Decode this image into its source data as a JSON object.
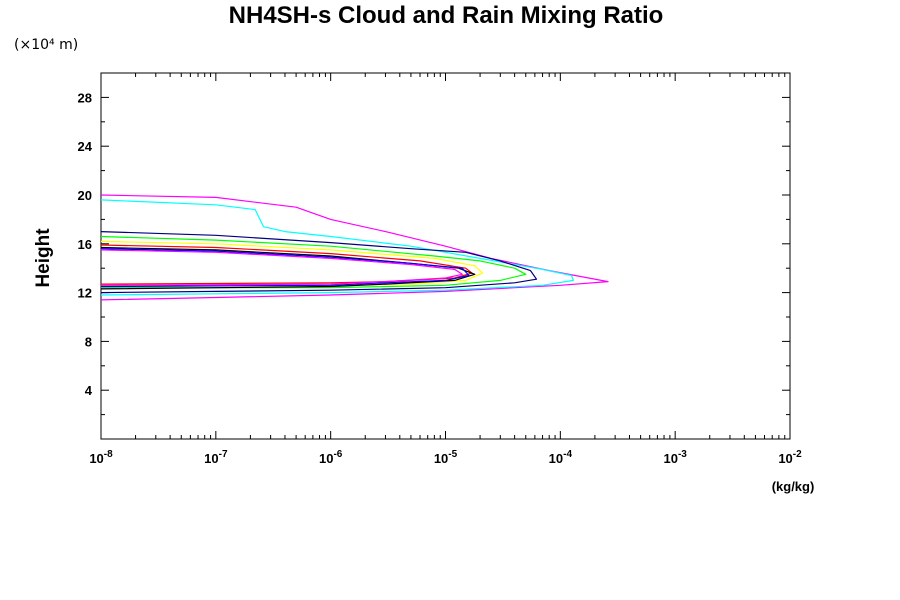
{
  "chart_data": {
    "type": "line",
    "title": "NH4SH-s Cloud and Rain Mixing Ratio",
    "ylabel": "Height",
    "y_unit_note": "(×10⁴ m)",
    "xlabel": "(kg/kg)",
    "x_scale": "log",
    "xlim": [
      1e-08,
      0.01
    ],
    "ylim": [
      0,
      30
    ],
    "x_tick_labels": [
      {
        "value": 1e-08,
        "base": "10",
        "exp": "-8"
      },
      {
        "value": 1e-07,
        "base": "10",
        "exp": "-7"
      },
      {
        "value": 1e-06,
        "base": "10",
        "exp": "-6"
      },
      {
        "value": 1e-05,
        "base": "10",
        "exp": "-5"
      },
      {
        "value": 0.0001,
        "base": "10",
        "exp": "-4"
      },
      {
        "value": 0.001,
        "base": "10",
        "exp": "-3"
      },
      {
        "value": 0.01,
        "base": "10",
        "exp": "-2"
      }
    ],
    "y_ticks": [
      4,
      8,
      12,
      16,
      20,
      24,
      28
    ],
    "series": [
      {
        "color": "#ff00ff",
        "points": [
          [
            1e-08,
            20.0
          ],
          [
            1e-07,
            19.8
          ],
          [
            5e-07,
            19.0
          ],
          [
            1e-06,
            18.0
          ],
          [
            3e-06,
            17.0
          ],
          [
            1e-05,
            15.8
          ],
          [
            2.5e-05,
            14.8
          ],
          [
            8e-05,
            13.8
          ],
          [
            0.00026,
            12.9
          ],
          [
            0.0001,
            12.6
          ],
          [
            1e-05,
            12.1
          ],
          [
            1e-06,
            11.8
          ],
          [
            1e-07,
            11.6
          ],
          [
            1e-08,
            11.4
          ]
        ]
      },
      {
        "color": "#00ffff",
        "points": [
          [
            1e-08,
            19.6
          ],
          [
            1e-07,
            19.2
          ],
          [
            2.2e-07,
            18.8
          ],
          [
            2.6e-07,
            17.4
          ],
          [
            4e-07,
            17.0
          ],
          [
            1e-06,
            16.6
          ],
          [
            5e-06,
            15.8
          ],
          [
            2e-05,
            14.8
          ],
          [
            7e-05,
            13.9
          ],
          [
            0.000125,
            13.4
          ],
          [
            0.00013,
            13.0
          ],
          [
            7e-05,
            12.6
          ],
          [
            1e-05,
            12.2
          ],
          [
            1e-06,
            12.0
          ],
          [
            1e-07,
            11.9
          ],
          [
            1e-08,
            11.8
          ]
        ]
      },
      {
        "color": "#000080",
        "points": [
          [
            1e-08,
            17.0
          ],
          [
            1e-07,
            16.7
          ],
          [
            1e-06,
            16.1
          ],
          [
            5e-06,
            15.6
          ],
          [
            1.5e-05,
            15.3
          ],
          [
            3e-05,
            14.6
          ],
          [
            5.5e-05,
            13.8
          ],
          [
            6.2e-05,
            13.1
          ],
          [
            4e-05,
            12.8
          ],
          [
            1e-05,
            12.4
          ],
          [
            1e-06,
            12.2
          ],
          [
            1e-07,
            12.1
          ],
          [
            1e-08,
            12.0
          ]
        ]
      },
      {
        "color": "#00ff00",
        "points": [
          [
            1e-08,
            16.6
          ],
          [
            1e-07,
            16.3
          ],
          [
            1e-06,
            15.8
          ],
          [
            8e-06,
            15.0
          ],
          [
            2e-05,
            14.6
          ],
          [
            4e-05,
            14.0
          ],
          [
            5e-05,
            13.5
          ],
          [
            3e-05,
            13.0
          ],
          [
            1e-05,
            12.6
          ],
          [
            1e-06,
            12.4
          ],
          [
            1e-08,
            12.4
          ]
        ]
      },
      {
        "color": "#ffff00",
        "points": [
          [
            1e-08,
            16.2
          ],
          [
            1e-07,
            16.0
          ],
          [
            1e-06,
            15.5
          ],
          [
            8e-06,
            14.8
          ],
          [
            1.8e-05,
            14.2
          ],
          [
            2.1e-05,
            13.6
          ],
          [
            1.5e-05,
            13.0
          ],
          [
            5e-06,
            12.7
          ],
          [
            1e-06,
            12.6
          ],
          [
            1e-08,
            12.5
          ]
        ]
      },
      {
        "color": "#ff0000",
        "points": [
          [
            1e-08,
            15.9
          ],
          [
            1e-07,
            15.7
          ],
          [
            1e-06,
            15.2
          ],
          [
            6e-06,
            14.6
          ],
          [
            1.5e-05,
            14.0
          ],
          [
            1.7e-05,
            13.6
          ],
          [
            1.2e-05,
            13.2
          ],
          [
            3e-06,
            12.9
          ],
          [
            1e-06,
            12.8
          ],
          [
            1e-08,
            12.7
          ]
        ]
      },
      {
        "color": "#000000",
        "points": [
          [
            1e-08,
            15.7
          ],
          [
            1e-07,
            15.5
          ],
          [
            1e-06,
            15.0
          ],
          [
            5e-06,
            14.4
          ],
          [
            1.3e-05,
            14.0
          ],
          [
            1.8e-05,
            13.5
          ],
          [
            1.2e-05,
            13.0
          ],
          [
            3e-06,
            12.7
          ],
          [
            1e-06,
            12.5
          ],
          [
            1e-08,
            12.3
          ]
        ]
      },
      {
        "color": "#0000ff",
        "points": [
          [
            1e-08,
            15.6
          ],
          [
            1e-07,
            15.4
          ],
          [
            1e-06,
            14.9
          ],
          [
            5e-06,
            14.4
          ],
          [
            1.4e-05,
            14.0
          ],
          [
            1.6e-05,
            13.4
          ],
          [
            1e-05,
            13.0
          ],
          [
            3e-06,
            12.8
          ],
          [
            1e-06,
            12.6
          ],
          [
            1e-08,
            12.5
          ]
        ]
      },
      {
        "color": "#ff00ff",
        "points": [
          [
            1e-08,
            15.5
          ],
          [
            1e-07,
            15.3
          ],
          [
            1e-06,
            14.8
          ],
          [
            5e-06,
            14.3
          ],
          [
            1.2e-05,
            13.9
          ],
          [
            1.4e-05,
            13.5
          ],
          [
            1e-05,
            13.2
          ],
          [
            3e-06,
            12.9
          ],
          [
            1e-06,
            12.7
          ],
          [
            1e-08,
            12.6
          ]
        ]
      }
    ]
  }
}
